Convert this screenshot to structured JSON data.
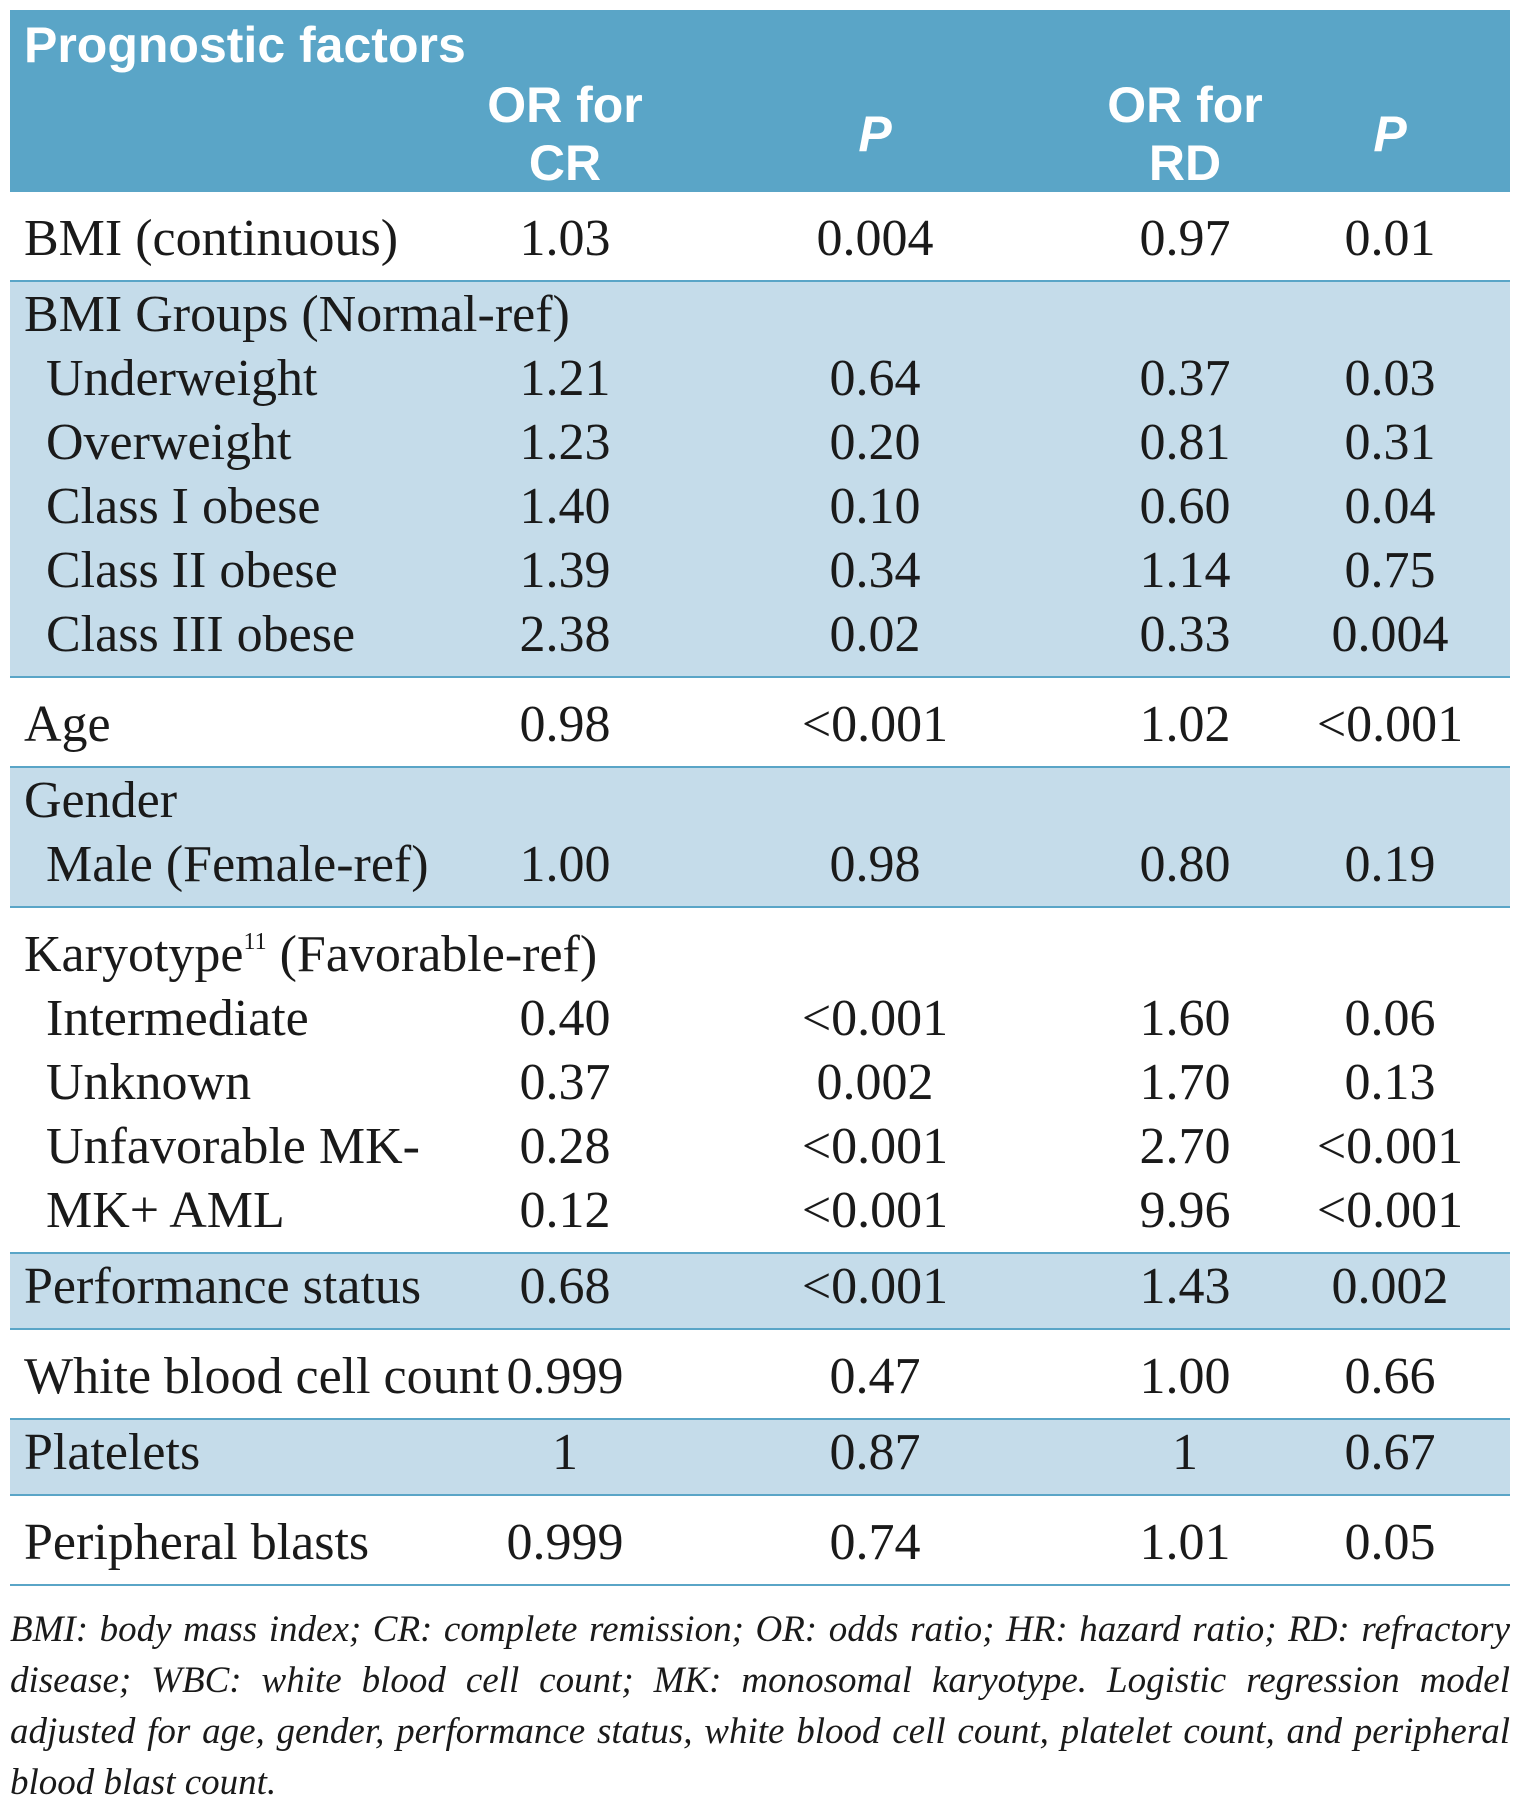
{
  "header": {
    "title": "Prognostic factors",
    "col_or_cr": "OR for CR",
    "col_p1": "P",
    "col_or_rd": "OR for RD",
    "col_p2": "P"
  },
  "rows": {
    "bmi_cont": {
      "label": "BMI (continuous)",
      "or_cr": "1.03",
      "p1": "0.004",
      "or_rd": "0.97",
      "p2": "0.01"
    },
    "bmi_groups_label": "BMI Groups (Normal-ref)",
    "underweight": {
      "label": "Underweight",
      "or_cr": "1.21",
      "p1": "0.64",
      "or_rd": "0.37",
      "p2": "0.03"
    },
    "overweight": {
      "label": "Overweight",
      "or_cr": "1.23",
      "p1": "0.20",
      "or_rd": "0.81",
      "p2": "0.31"
    },
    "class1": {
      "label": "Class I obese",
      "or_cr": "1.40",
      "p1": "0.10",
      "or_rd": "0.60",
      "p2": "0.04"
    },
    "class2": {
      "label": "Class II obese",
      "or_cr": "1.39",
      "p1": "0.34",
      "or_rd": "1.14",
      "p2": "0.75"
    },
    "class3": {
      "label": "Class III obese",
      "or_cr": "2.38",
      "p1": "0.02",
      "or_rd": "0.33",
      "p2": "0.004"
    },
    "age": {
      "label": "Age",
      "or_cr": "0.98",
      "p1": "<0.001",
      "or_rd": "1.02",
      "p2": "<0.001"
    },
    "gender_label": "Gender",
    "male": {
      "label": "Male (Female-ref)",
      "or_cr": "1.00",
      "p1": "0.98",
      "or_rd": "0.80",
      "p2": "0.19"
    },
    "karyotype_label": "Karyotype",
    "karyotype_sup": "11",
    "karyotype_suffix": " (Favorable-ref)",
    "intermediate": {
      "label": "Intermediate",
      "or_cr": "0.40",
      "p1": "<0.001",
      "or_rd": "1.60",
      "p2": "0.06"
    },
    "unknown": {
      "label": "Unknown",
      "or_cr": "0.37",
      "p1": "0.002",
      "or_rd": "1.70",
      "p2": "0.13"
    },
    "unfav": {
      "label": "Unfavorable MK-",
      "or_cr": "0.28",
      "p1": "<0.001",
      "or_rd": "2.70",
      "p2": "<0.001"
    },
    "mkplus": {
      "label": "MK+ AML",
      "or_cr": "0.12",
      "p1": "<0.001",
      "or_rd": "9.96",
      "p2": "<0.001"
    },
    "perf": {
      "label": "Performance status",
      "or_cr": "0.68",
      "p1": "<0.001",
      "or_rd": "1.43",
      "p2": "0.002"
    },
    "wbc": {
      "label": "White blood cell count",
      "or_cr": "0.999",
      "p1": "0.47",
      "or_rd": "1.00",
      "p2": "0.66"
    },
    "platelets": {
      "label": "Platelets",
      "or_cr": "1",
      "p1": "0.87",
      "or_rd": "1",
      "p2": "0.67"
    },
    "blasts": {
      "label": "Peripheral blasts",
      "or_cr": "0.999",
      "p1": "0.74",
      "or_rd": "1.01",
      "p2": "0.05"
    }
  },
  "footnote": "BMI: body mass index; CR: complete remission; OR: odds ratio; HR: hazard ratio; RD: refractory disease; WBC: white blood cell count; MK: monosomal karyotype. Logistic regression model adjusted for age, gender, performance status, white blood cell count, platelet count, and peripheral blood blast count.",
  "colors": {
    "header": "#5aa5c7",
    "shade": "#c5dcea"
  }
}
